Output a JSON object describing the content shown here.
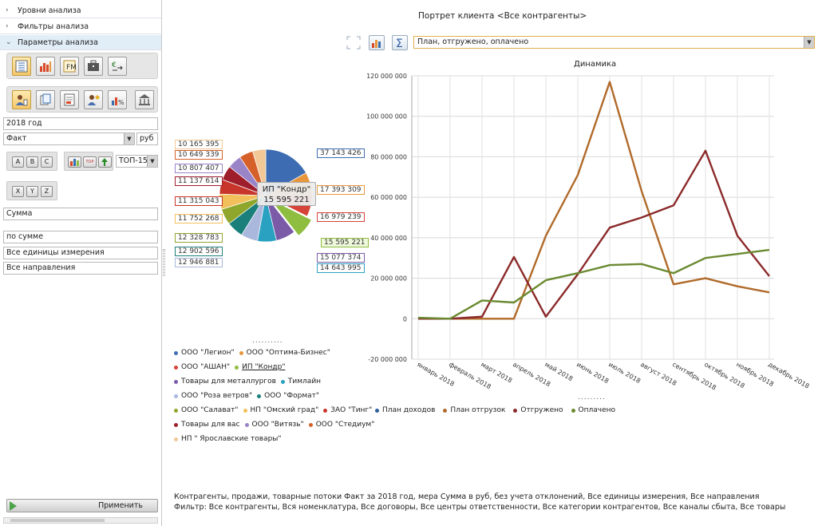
{
  "left_panel": {
    "accordion": [
      {
        "label": "Уровни анализа",
        "chevron": "›"
      },
      {
        "label": "Фильтры анализа",
        "chevron": "›"
      },
      {
        "label": "Параметры анализа",
        "chevron": "⌄"
      }
    ],
    "period": "2018 год",
    "scenario": "Факт",
    "currency": "руб",
    "abc_buttons": [
      "A",
      "B",
      "C"
    ],
    "xyz_buttons": [
      "X",
      "Y",
      "Z"
    ],
    "top_select": "ТОП-15",
    "top_icon_label": "TOP",
    "measure": "Сумма",
    "sort": "по сумме",
    "units": "Все единицы измерения",
    "directions": "Все направления",
    "apply_label": "Применить"
  },
  "header": {
    "title": "Портрет клиента <Все контрагенты>",
    "measure_select": "План, отгружено, оплачено"
  },
  "pie": {
    "tooltip_name": "ИП \"Кондр\"",
    "tooltip_value": "15 595 221",
    "right_labels": [
      "37 143 426",
      "17 393 309",
      "16 979 239",
      "15 595 221",
      "15 077 374",
      "14 643 995"
    ],
    "left_labels": [
      "10 165 395",
      "10 649 339",
      "10 807 407",
      "11 137 614",
      "11 315 043",
      "11 752 268",
      "12 328 783",
      "12 902 596",
      "12 946 881"
    ],
    "pager": "..........",
    "legend": [
      {
        "name": "ООО \"Легион\"",
        "color": "#3d6cb3"
      },
      {
        "name": "ООО \"Оптима-Бизнес\"",
        "color": "#e8963c"
      },
      {
        "name": "ООО \"АШАН\"",
        "color": "#d64238"
      },
      {
        "name": "ИП \"Кондр\"",
        "color": "#8fbd3f"
      },
      {
        "name": "Товары для металлургов",
        "color": "#7b5ba8"
      },
      {
        "name": "Тимлайн",
        "color": "#2aa1c0"
      },
      {
        "name": "ООО \"Роза ветров\"",
        "color": "#a9b8dc"
      },
      {
        "name": "ООО \"Формат\"",
        "color": "#1a7f7a"
      },
      {
        "name": "ООО \"Салават\"",
        "color": "#8ea62c"
      },
      {
        "name": "НП \"Омский град\"",
        "color": "#f2c05a"
      },
      {
        "name": "ЗАО \"Тинг\"",
        "color": "#c8352a"
      },
      {
        "name": "Товары для вас",
        "color": "#9e1e2c"
      },
      {
        "name": "ООО \"Витязь\"",
        "color": "#9a84c8"
      },
      {
        "name": "ООО \"Стедиум\"",
        "color": "#d6602a"
      },
      {
        "name": "НП \" Ярославские товары\"",
        "color": "#f2c896"
      }
    ]
  },
  "chart_data": {
    "type": "line",
    "title": "Динамика",
    "categories": [
      "январь 2018",
      "февраль 2018",
      "март 2018",
      "апрель 2018",
      "май 2018",
      "июнь 2018",
      "июль 2018",
      "август 2018",
      "сентябрь 2018",
      "октябрь 2018",
      "ноябрь 2018",
      "декабрь 2018"
    ],
    "ylim": [
      -20000000,
      120000000
    ],
    "yticks": [
      -20000000,
      0,
      20000000,
      40000000,
      60000000,
      80000000,
      100000000,
      120000000
    ],
    "ytick_labels": [
      "-20 000 000",
      "0",
      "20 000 000",
      "40 000 000",
      "60 000 000",
      "80 000 000",
      "100 000 000",
      "120 000 000"
    ],
    "grid": true,
    "legend_position": "bottom",
    "pager": ".........",
    "series": [
      {
        "name": "План доходов",
        "color": "#2e5f9e",
        "values": [
          null,
          null,
          null,
          null,
          null,
          null,
          null,
          null,
          null,
          null,
          null,
          null
        ]
      },
      {
        "name": "План отгрузок",
        "color": "#b06a2a",
        "values": [
          0,
          0,
          0,
          0,
          41000000,
          71000000,
          117000000,
          63000000,
          17000000,
          20000000,
          16000000,
          13000000
        ]
      },
      {
        "name": "Отгружено",
        "color": "#8b2a2a",
        "values": [
          0,
          0,
          1000000,
          30500000,
          1000000,
          22000000,
          45000000,
          50000000,
          56000000,
          83000000,
          41000000,
          21000000
        ]
      },
      {
        "name": "Оплачено",
        "color": "#6a8a30",
        "values": [
          500000,
          0,
          9000000,
          8000000,
          19000000,
          22500000,
          26500000,
          27000000,
          22500000,
          30000000,
          32000000,
          34000000
        ]
      }
    ]
  },
  "footer": {
    "line1": "Контрагенты, продажи, товарные потоки Факт за 2018 год, мера Сумма в руб, без учета отклонений, Все единицы измерения, Все направления",
    "line2": "Фильтр: Все контрагенты, Вся номенклатура, Все договоры, Все центры ответственности, Все категории контрагентов, Все каналы сбыта, Все товары"
  }
}
